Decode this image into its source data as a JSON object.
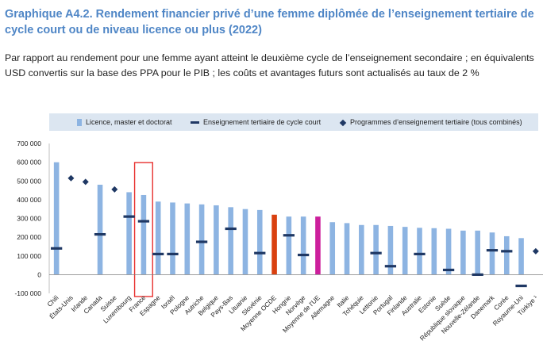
{
  "title": "Graphique A4.2. Rendement financier privé d’une femme diplômée de l’enseignement tertiaire de cycle court ou de niveau licence ou plus (2022)",
  "subtitle": "Par rapport au rendement pour une femme ayant atteint le deuxième cycle de l’enseignement secondaire ; en équivalents USD convertis sur la base des PPA pour le PIB ; les coûts et avantages futurs sont actualisés au taux de 2 %",
  "legend": {
    "bachelor": "Licence, master et doctorat",
    "short_cycle": "Enseignement tertiaire de cycle court",
    "combined": "Programmes d’enseignement tertiaire (tous combinés)"
  },
  "colors": {
    "bar": "#8db4e2",
    "oecd_avg": "#d9400f",
    "eu_avg": "#cc1f9c",
    "marker": "#1f3864",
    "highlight_box": "#e8312f",
    "title": "#4f86c6"
  },
  "chart_data": {
    "type": "bar",
    "title": "Graphique A4.2. Rendement financier privé d’une femme diplômée de l’enseignement tertiaire de cycle court ou de niveau licence ou plus (2022)",
    "ylim": [
      -100000,
      700000
    ],
    "yticks": [
      -100000,
      0,
      100000,
      200000,
      300000,
      400000,
      500000,
      600000,
      700000
    ],
    "ytick_labels": [
      "-100 000",
      "0",
      "100 000",
      "200 000",
      "300 000",
      "400 000",
      "500 000",
      "600 000",
      "700 000"
    ],
    "grid": false,
    "legend_position": "top",
    "highlighted_category": "France",
    "categories": [
      "Chili",
      "États-Unis",
      "Irlande",
      "Canada",
      "Suisse",
      "Luxembourg",
      "France",
      "Espagne",
      "Israël",
      "Pologne",
      "Autriche",
      "Belgique",
      "Pays-Bas",
      "Lituanie",
      "Slovénie",
      "Moyenne OCDE",
      "Hongrie",
      "Norvège",
      "Moyenne de l’UE",
      "Allemagne",
      "Italie",
      "Tchéquie",
      "Lettonie",
      "Portugal",
      "Finlande",
      "Australie",
      "Estonie",
      "Suède",
      "République slovaque",
      "Nouvelle-Zélande",
      "Danemark",
      "Corée",
      "Royaume-Uni",
      "Türkiye ¹"
    ],
    "series": [
      {
        "name": "Licence, master et doctorat",
        "values": [
          600000,
          null,
          null,
          480000,
          null,
          440000,
          425000,
          390000,
          385000,
          380000,
          375000,
          370000,
          360000,
          350000,
          345000,
          320000,
          310000,
          310000,
          310000,
          280000,
          275000,
          265000,
          265000,
          260000,
          255000,
          250000,
          248000,
          245000,
          235000,
          235000,
          225000,
          205000,
          195000,
          null
        ]
      },
      {
        "name": "Enseignement tertiaire de cycle court",
        "values": [
          140000,
          null,
          null,
          215000,
          null,
          310000,
          285000,
          110000,
          110000,
          null,
          175000,
          null,
          245000,
          null,
          115000,
          null,
          210000,
          105000,
          null,
          null,
          null,
          null,
          115000,
          45000,
          null,
          110000,
          null,
          25000,
          null,
          0,
          130000,
          125000,
          -60000,
          null
        ]
      },
      {
        "name": "Programmes d’enseignement tertiaire (tous combinés)",
        "values": [
          null,
          515000,
          495000,
          null,
          455000,
          null,
          null,
          null,
          null,
          null,
          null,
          null,
          null,
          null,
          null,
          null,
          null,
          null,
          null,
          null,
          null,
          null,
          null,
          null,
          null,
          null,
          null,
          null,
          null,
          null,
          null,
          null,
          null,
          125000
        ]
      }
    ]
  }
}
